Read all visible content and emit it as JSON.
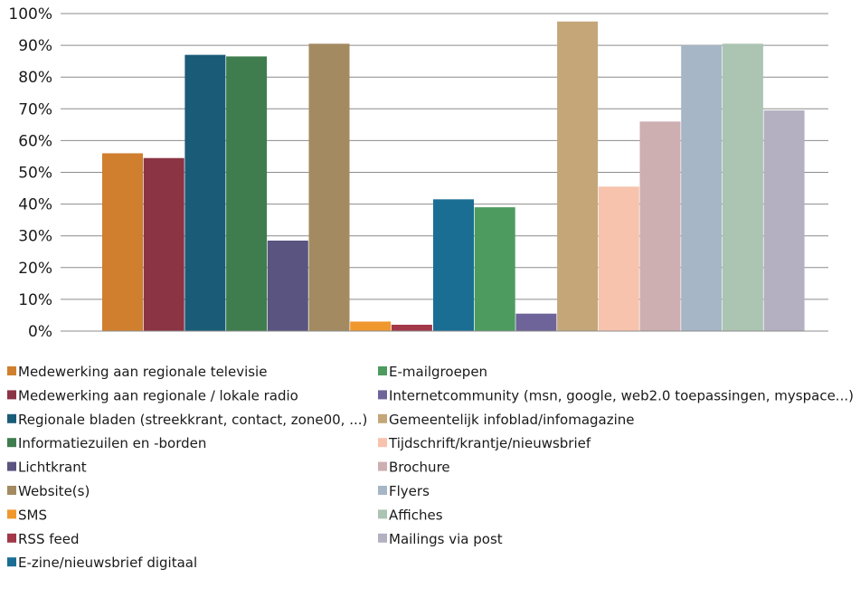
{
  "chart_data": {
    "type": "bar",
    "ylim": [
      0,
      100
    ],
    "ytick_step": 10,
    "ytick_suffix": "%",
    "grid": true,
    "legend_position": "bottom",
    "groups": 2,
    "series": [
      {
        "name": "Medewerking aan regionale televisie",
        "values": [
          56,
          null
        ],
        "color": "#cf7f2e"
      },
      {
        "name": "Medewerking aan regionale / lokale radio",
        "values": [
          54.5,
          null
        ],
        "color": "#8b3444"
      },
      {
        "name": "Regionale bladen (streekkrant, contact, zone00, ...)",
        "values": [
          87,
          null
        ],
        "color": "#1a5c78"
      },
      {
        "name": "Informatiezuilen en -borden",
        "values": [
          86.5,
          null
        ],
        "color": "#3f7d4e"
      },
      {
        "name": "Lichtkrant",
        "values": [
          28.5,
          null
        ],
        "color": "#5a5480"
      },
      {
        "name": "Website(s)",
        "values": [
          90.5,
          null
        ],
        "color": "#a38a60"
      },
      {
        "name": "SMS",
        "values": [
          3,
          null
        ],
        "color": "#f0982e"
      },
      {
        "name": "RSS feed",
        "values": [
          2,
          null
        ],
        "color": "#a23848"
      },
      {
        "name": "E-zine/nieuwsbrief digitaal",
        "values": [
          null,
          41.5
        ],
        "color": "#1a6e94"
      },
      {
        "name": "E-mailgroepen",
        "values": [
          null,
          39
        ],
        "color": "#4e9b60"
      },
      {
        "name": "Internetcommunity (msn, google, web2.0 toepassingen, myspace...)",
        "values": [
          null,
          5.5
        ],
        "color": "#6e6499"
      },
      {
        "name": "Gemeentelijk infoblad/infomagazine",
        "values": [
          null,
          97.5
        ],
        "color": "#c4a679"
      },
      {
        "name": "Tijdschrift/krantje/nieuwsbrief",
        "values": [
          null,
          45.5
        ],
        "color": "#f8c3ad"
      },
      {
        "name": "Brochure",
        "values": [
          null,
          66
        ],
        "color": "#cdaeb1"
      },
      {
        "name": "Flyers",
        "values": [
          null,
          90
        ],
        "color": "#a6b6c6"
      },
      {
        "name": "Affiches",
        "values": [
          null,
          90.5
        ],
        "color": "#acc4b2"
      },
      {
        "name": "Mailings via post",
        "values": [
          null,
          69.5
        ],
        "color": "#b4b0c2"
      }
    ]
  }
}
